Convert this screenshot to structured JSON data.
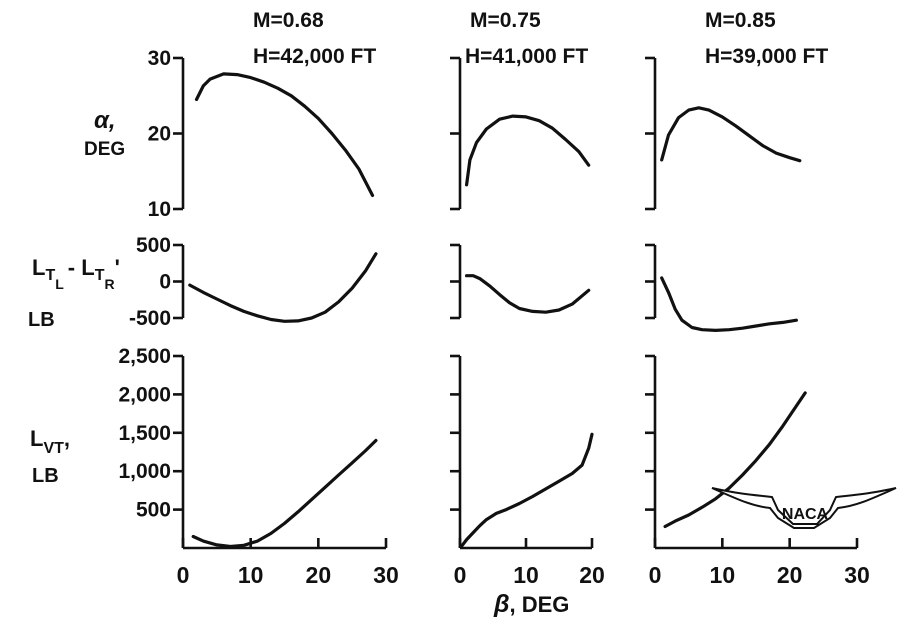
{
  "chart_data": {
    "type": "line",
    "x_label": {
      "symbol": "β",
      "text": ", DEG"
    },
    "panels": [
      {
        "mach": "M=0.68",
        "altitude": "H=42,000 FT",
        "xlim": [
          0,
          30
        ],
        "x_ticks": [
          "0",
          "10",
          "20",
          "30"
        ]
      },
      {
        "mach": "M=0.75",
        "altitude": "H=41,000 FT",
        "xlim": [
          0,
          20
        ],
        "x_ticks": [
          "0",
          "10",
          "20"
        ]
      },
      {
        "mach": "M=0.85",
        "altitude": "H=39,000 FT",
        "xlim": [
          0,
          30
        ],
        "x_ticks": [
          "0",
          "10",
          "20",
          "30"
        ]
      }
    ],
    "rows": [
      {
        "key": "alpha",
        "ylabel_lines": [
          "α,",
          "DEG"
        ],
        "ylim": [
          10,
          30
        ],
        "y_ticks": [
          {
            "value": 30,
            "label": "30"
          },
          {
            "value": 20,
            "label": "20"
          },
          {
            "value": 10,
            "label": "10"
          }
        ],
        "series": [
          [
            [
              2,
              24.5
            ],
            [
              3,
              26.3
            ],
            [
              4,
              27.2
            ],
            [
              6,
              27.9
            ],
            [
              8,
              27.8
            ],
            [
              10,
              27.4
            ],
            [
              12,
              26.8
            ],
            [
              14,
              26
            ],
            [
              16,
              25
            ],
            [
              18,
              23.6
            ],
            [
              20,
              22
            ],
            [
              22,
              20
            ],
            [
              24,
              17.8
            ],
            [
              26,
              15.3
            ],
            [
              28,
              11.8
            ]
          ],
          [
            [
              1,
              13.2
            ],
            [
              1.5,
              16.5
            ],
            [
              2.5,
              18.8
            ],
            [
              4,
              20.6
            ],
            [
              6,
              21.9
            ],
            [
              8,
              22.3
            ],
            [
              10,
              22.2
            ],
            [
              12,
              21.7
            ],
            [
              14,
              20.7
            ],
            [
              16,
              19.2
            ],
            [
              18,
              17.6
            ],
            [
              19.5,
              15.8
            ]
          ],
          [
            [
              1,
              16.5
            ],
            [
              2,
              19.8
            ],
            [
              3.5,
              22.1
            ],
            [
              5,
              23.1
            ],
            [
              6.5,
              23.4
            ],
            [
              8,
              23.1
            ],
            [
              10,
              22.2
            ],
            [
              12,
              21
            ],
            [
              14,
              19.7
            ],
            [
              16,
              18.4
            ],
            [
              18,
              17.4
            ],
            [
              20,
              16.8
            ],
            [
              21.5,
              16.4
            ]
          ]
        ]
      },
      {
        "key": "lt_diff",
        "ylabel_main": "L",
        "ylabel_sub1": "T",
        "ylabel_sub1_sub": "L",
        "ylabel_minus": "- L",
        "ylabel_sub2": "T",
        "ylabel_sub2_sub": "R",
        "ylabel_comma": "'",
        "ylabel_unit": "LB",
        "ylim": [
          -500,
          500
        ],
        "y_ticks": [
          {
            "value": 500,
            "label": "500"
          },
          {
            "value": 0,
            "label": "0"
          },
          {
            "value": -500,
            "label": "-500"
          }
        ],
        "series": [
          [
            [
              1,
              -50
            ],
            [
              3,
              -150
            ],
            [
              5,
              -240
            ],
            [
              7,
              -330
            ],
            [
              9,
              -410
            ],
            [
              11,
              -470
            ],
            [
              13,
              -520
            ],
            [
              15,
              -545
            ],
            [
              17,
              -540
            ],
            [
              19,
              -500
            ],
            [
              21,
              -420
            ],
            [
              23,
              -280
            ],
            [
              25,
              -90
            ],
            [
              27,
              150
            ],
            [
              28.5,
              380
            ]
          ],
          [
            [
              1,
              80
            ],
            [
              2,
              80
            ],
            [
              3,
              40
            ],
            [
              4.5,
              -60
            ],
            [
              6,
              -180
            ],
            [
              7.5,
              -290
            ],
            [
              9,
              -370
            ],
            [
              11,
              -410
            ],
            [
              13,
              -420
            ],
            [
              15,
              -390
            ],
            [
              17,
              -310
            ],
            [
              19.5,
              -120
            ]
          ],
          [
            [
              1,
              50
            ],
            [
              2,
              -150
            ],
            [
              3,
              -380
            ],
            [
              4,
              -530
            ],
            [
              5.5,
              -630
            ],
            [
              7,
              -660
            ],
            [
              9,
              -670
            ],
            [
              11,
              -660
            ],
            [
              13,
              -640
            ],
            [
              15,
              -610
            ],
            [
              17,
              -580
            ],
            [
              19,
              -560
            ],
            [
              21,
              -530
            ]
          ]
        ]
      },
      {
        "key": "lvt",
        "ylabel_main": "L",
        "ylabel_sub": "VT",
        "ylabel_comma": ",",
        "ylabel_unit": "LB",
        "ylim": [
          0,
          2500
        ],
        "y_ticks": [
          {
            "value": 2500,
            "label": "2,500"
          },
          {
            "value": 2000,
            "label": "2,000"
          },
          {
            "value": 1500,
            "label": "1,500"
          },
          {
            "value": 1000,
            "label": "1,000"
          },
          {
            "value": 500,
            "label": "500"
          }
        ],
        "series": [
          [
            [
              1.5,
              150
            ],
            [
              3,
              90
            ],
            [
              5,
              40
            ],
            [
              7,
              20
            ],
            [
              9,
              35
            ],
            [
              11,
              90
            ],
            [
              13,
              190
            ],
            [
              15,
              320
            ],
            [
              17,
              470
            ],
            [
              19,
              630
            ],
            [
              21,
              790
            ],
            [
              23,
              950
            ],
            [
              25,
              1110
            ],
            [
              27,
              1270
            ],
            [
              28.5,
              1400
            ]
          ],
          [
            [
              0.3,
              30
            ],
            [
              1,
              110
            ],
            [
              2,
              200
            ],
            [
              3,
              290
            ],
            [
              4,
              370
            ],
            [
              5.5,
              450
            ],
            [
              7,
              500
            ],
            [
              9,
              580
            ],
            [
              11,
              670
            ],
            [
              13,
              770
            ],
            [
              15,
              870
            ],
            [
              17,
              970
            ],
            [
              18.5,
              1080
            ],
            [
              19.5,
              1300
            ],
            [
              20,
              1480
            ]
          ],
          [
            [
              1.5,
              280
            ],
            [
              3,
              350
            ],
            [
              5,
              430
            ],
            [
              7,
              530
            ],
            [
              9,
              640
            ],
            [
              11,
              780
            ],
            [
              13,
              950
            ],
            [
              15,
              1140
            ],
            [
              17,
              1350
            ],
            [
              19,
              1590
            ],
            [
              21,
              1850
            ],
            [
              22.3,
              2020
            ]
          ]
        ]
      }
    ]
  },
  "logo": {
    "text": "NACA"
  }
}
